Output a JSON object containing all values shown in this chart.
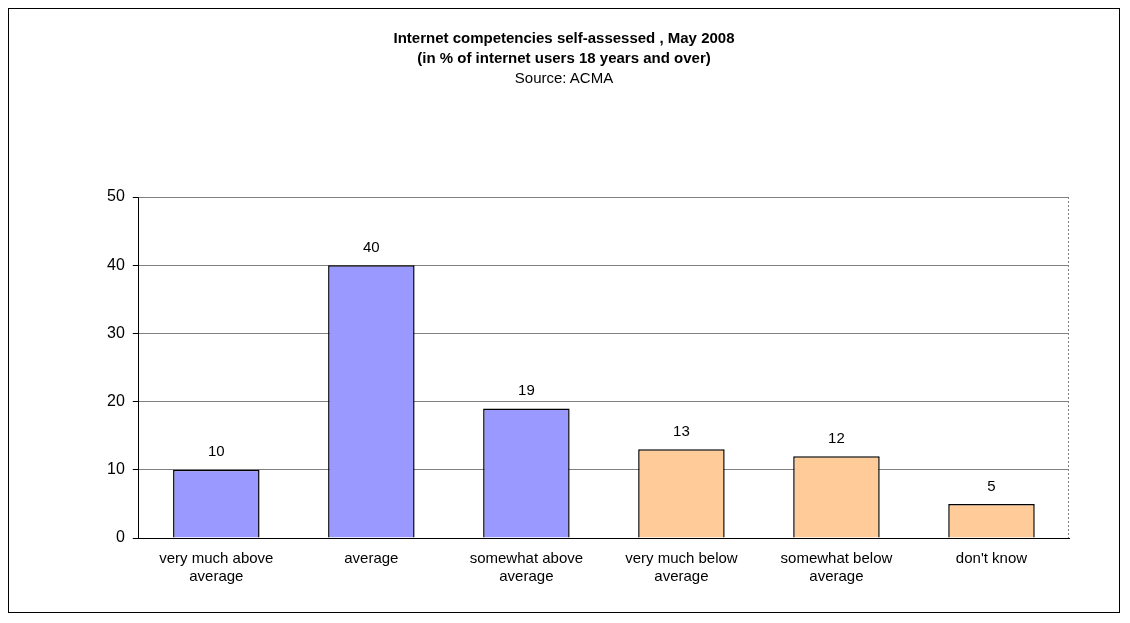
{
  "chart_data": {
    "type": "bar",
    "title": "Internet competencies self-assessed , May 2008",
    "subtitle": "(in % of internet users 18 years and over)",
    "annotations": [
      "Source: ACMA"
    ],
    "categories": [
      "very much above average",
      "average",
      "somewhat above average",
      "very much below average",
      "somewhat below average",
      "don't know"
    ],
    "values": [
      10,
      40,
      19,
      13,
      12,
      5
    ],
    "colors": [
      "#9999ff",
      "#9999ff",
      "#9999ff",
      "#ffcc99",
      "#ffcc99",
      "#ffcc99"
    ],
    "ylim": [
      0,
      50
    ],
    "yticks": [
      0,
      10,
      20,
      30,
      40,
      50
    ],
    "grid": "y",
    "data_labels": true
  }
}
